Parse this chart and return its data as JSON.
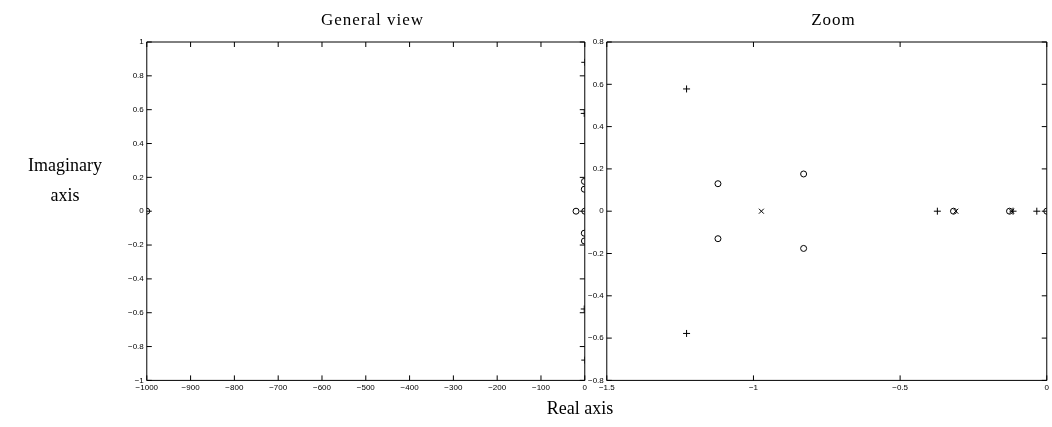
{
  "chart_data": [
    {
      "type": "scatter",
      "title": "General view",
      "ylabel": "Imaginary axis",
      "xlim": [
        -1000,
        0
      ],
      "xticks": [
        -1000,
        -900,
        -800,
        -700,
        -600,
        -500,
        -400,
        -300,
        -200,
        -100,
        0
      ],
      "ylim": [
        -1,
        1
      ],
      "yticks": [
        -1,
        -0.8,
        -0.6,
        -0.4,
        -0.2,
        0,
        0.2,
        0.4,
        0.6,
        0.8,
        1
      ],
      "series": [
        {
          "color": "#000000",
          "marker": "circle",
          "x": [
            -1000,
            -20,
            -1.121,
            -1.121,
            -0.829,
            -0.829,
            0
          ],
          "values": [
            0,
            0,
            0.13,
            -0.13,
            0.176,
            -0.176,
            0
          ]
        },
        {
          "color": "#000000",
          "marker": "cross",
          "x": [
            -1.228,
            -1.228,
            0,
            0
          ],
          "values": [
            0.578,
            -0.578,
            0.88,
            -0.88
          ]
        }
      ]
    },
    {
      "type": "scatter",
      "title": "Zoom",
      "xlabel": "Real axis",
      "xlim": [
        -1.5,
        0
      ],
      "xticks": [
        -1.5,
        -1,
        -0.5,
        0
      ],
      "ylim": [
        -0.8,
        0.8
      ],
      "yticks": [
        -0.8,
        -0.6,
        -0.4,
        -0.2,
        0,
        0.2,
        0.4,
        0.6,
        0.8
      ],
      "series": [
        {
          "color": "#000000",
          "marker": "circle",
          "x": [
            -1.121,
            -1.121,
            -0.829,
            -0.829,
            -0.318,
            -0.127,
            0
          ],
          "values": [
            0.13,
            -0.13,
            0.176,
            -0.176,
            0,
            0,
            0
          ]
        },
        {
          "color": "#000000",
          "marker": "cross",
          "x": [
            -1.228,
            -1.228,
            -0.373,
            -0.115,
            -0.034
          ],
          "values": [
            0.578,
            -0.578,
            0,
            0,
            0
          ]
        },
        {
          "color": "#000000",
          "x": [
            -0.973,
            -0.31,
            -0.12
          ],
          "values": [
            0,
            0,
            0
          ]
        }
      ]
    }
  ]
}
